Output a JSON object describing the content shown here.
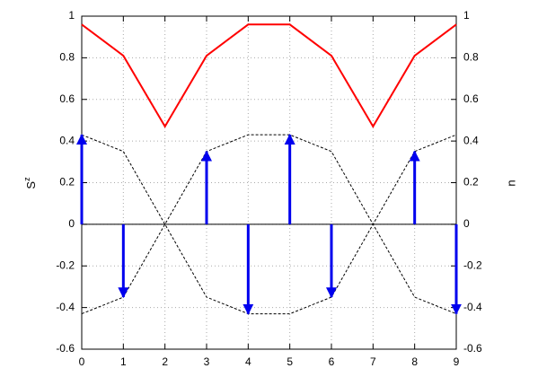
{
  "chart_data": {
    "type": "line",
    "x": [
      0,
      1,
      2,
      3,
      4,
      5,
      6,
      7,
      8,
      9
    ],
    "xlim": [
      0,
      9
    ],
    "xticks": [
      0,
      1,
      2,
      3,
      4,
      5,
      6,
      7,
      8,
      9
    ],
    "ylim": [
      -0.6,
      1
    ],
    "yticks": [
      -0.6,
      -0.4,
      -0.2,
      0,
      0.2,
      0.4,
      0.6,
      0.8,
      1
    ],
    "y2lim": [
      -0.6,
      1
    ],
    "y2ticks": [
      -0.6,
      -0.4,
      -0.2,
      0,
      0.2,
      0.4,
      0.6,
      0.8,
      1
    ],
    "ylabel": "S",
    "ylabel_sup": "z",
    "y2label": "n",
    "grid": true,
    "series": [
      {
        "style": "solid",
        "color": "#ff0000",
        "axis": "y2",
        "values": [
          0.96,
          0.81,
          0.47,
          0.81,
          0.96,
          0.96,
          0.81,
          0.47,
          0.81,
          0.96
        ]
      },
      {
        "style": "dashed",
        "color": "#000000",
        "values": [
          0.43,
          0.35,
          0,
          -0.35,
          -0.43,
          -0.43,
          -0.35,
          0,
          0.35,
          0.43
        ]
      },
      {
        "style": "dashed",
        "color": "#000000",
        "values": [
          -0.43,
          -0.35,
          0,
          0.35,
          0.43,
          0.43,
          0.35,
          0,
          -0.35,
          -0.43
        ]
      },
      {
        "style": "arrow",
        "color": "#0000ee",
        "values": [
          0.43,
          -0.35,
          0,
          0.35,
          -0.43,
          0.43,
          -0.35,
          0,
          0.35,
          -0.43
        ]
      }
    ]
  }
}
